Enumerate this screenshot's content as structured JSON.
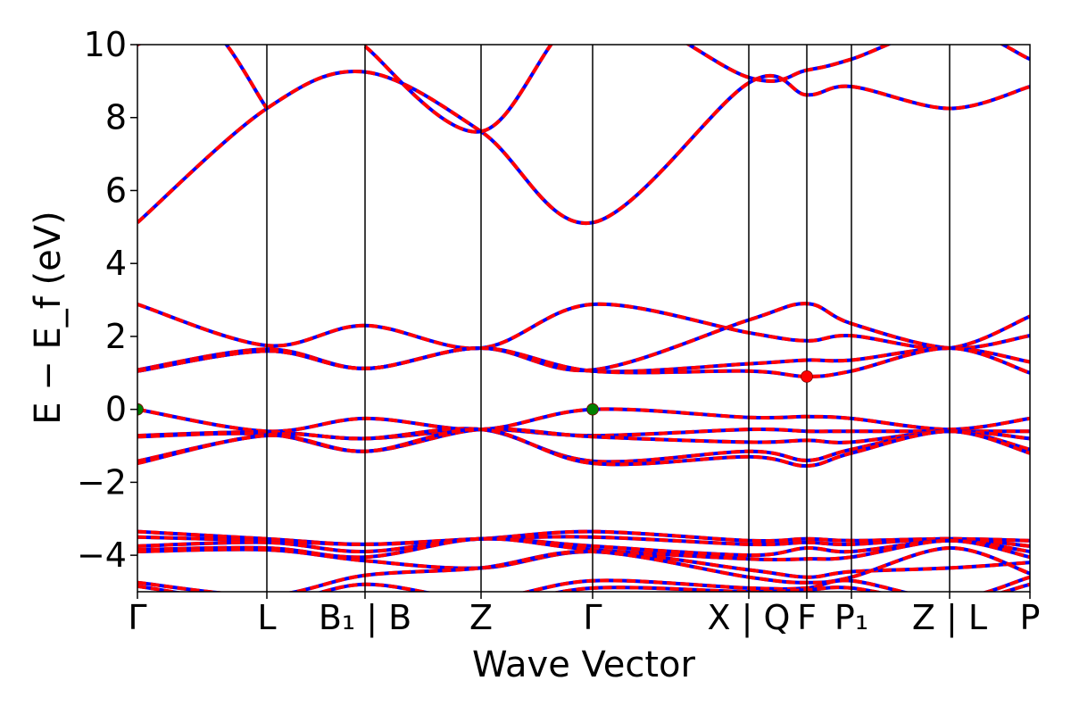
{
  "chart_data": {
    "type": "line",
    "title": "",
    "xlabel": "Wave Vector",
    "ylabel": "E − E_f (eV)",
    "ylim": [
      -5,
      10
    ],
    "y_ticks": [
      -4,
      -2,
      0,
      2,
      4,
      6,
      8,
      10
    ],
    "y_tick_labels": [
      "−4",
      "−2",
      "0",
      "2",
      "4",
      "6",
      "8",
      "10"
    ],
    "grid": false,
    "kpath": [
      {
        "label": "Γ",
        "x": 0.0
      },
      {
        "label": "L",
        "x": 0.29
      },
      {
        "label": "B₁ | B",
        "x": 0.51
      },
      {
        "label": "Z",
        "x": 0.77
      },
      {
        "label": "Γ",
        "x": 1.02
      },
      {
        "label": "X | Q",
        "x": 1.37
      },
      {
        "label": "F",
        "x": 1.5
      },
      {
        "label": "P₁",
        "x": 1.6
      },
      {
        "label": "Z | L",
        "x": 1.82
      },
      {
        "label": "P",
        "x": 2.0
      }
    ],
    "colors": {
      "spin_up": "#ff0000",
      "spin_down": "#0000ff",
      "vbm_marker": "#008000",
      "cbm_marker": "#ff0000"
    },
    "series": [
      {
        "x": [
          0.0,
          0.29,
          0.51,
          0.77,
          1.02,
          1.37,
          1.5,
          1.6,
          1.82,
          2.0
        ],
        "y": [
          5.12,
          8.25,
          9.25,
          7.62,
          5.12,
          8.95,
          8.62,
          8.85,
          8.25,
          8.85
        ]
      },
      {
        "x": [
          0.0,
          0.15,
          0.29
        ],
        "y": [
          10.0,
          10.6,
          8.25
        ]
      },
      {
        "x": [
          0.51,
          0.77,
          1.02,
          1.37,
          1.5,
          1.6,
          1.82,
          2.0
        ],
        "y": [
          9.95,
          7.62,
          11.0,
          9.1,
          9.3,
          9.6,
          10.5,
          9.6
        ]
      },
      {
        "x": [
          0.0,
          0.29,
          0.51,
          0.77,
          1.02,
          1.37,
          1.5,
          1.6,
          1.82,
          2.0
        ],
        "y": [
          2.88,
          1.75,
          2.3,
          1.68,
          2.88,
          2.1,
          1.88,
          2.02,
          1.68,
          2.55
        ]
      },
      {
        "x": [
          0.0,
          0.29,
          0.51,
          0.77,
          1.02,
          1.37,
          1.5,
          1.6,
          1.82,
          2.0
        ],
        "y": [
          1.08,
          1.65,
          1.12,
          1.68,
          1.08,
          2.45,
          2.9,
          2.35,
          1.68,
          2.02
        ]
      },
      {
        "x": [
          0.0,
          0.29,
          0.51,
          0.77,
          1.02,
          1.37,
          1.5,
          1.6,
          1.82,
          2.0
        ],
        "y": [
          1.05,
          1.6,
          1.12,
          1.68,
          1.05,
          1.25,
          1.35,
          1.35,
          1.68,
          1.3
        ]
      },
      {
        "x": [
          0.0,
          0.29,
          0.51,
          0.77,
          1.02,
          1.37,
          1.5,
          1.6,
          1.82,
          2.0
        ],
        "y": [
          1.05,
          1.6,
          1.12,
          1.68,
          1.05,
          1.05,
          0.9,
          1.05,
          1.68,
          1.0
        ]
      },
      {
        "x": [
          0.0,
          0.29,
          0.51,
          0.77,
          1.02,
          1.37,
          1.5,
          1.6,
          1.82,
          2.0
        ],
        "y": [
          0.0,
          -0.6,
          -0.25,
          -0.55,
          0.0,
          -0.22,
          -0.2,
          -0.25,
          -0.55,
          -0.25
        ]
      },
      {
        "x": [
          0.0,
          0.29,
          0.51,
          0.77,
          1.02,
          1.37,
          1.5,
          1.6,
          1.82,
          2.0
        ],
        "y": [
          -0.72,
          -0.62,
          -0.8,
          -0.55,
          -0.72,
          -0.55,
          -0.6,
          -0.6,
          -0.6,
          -0.6
        ]
      },
      {
        "x": [
          0.0,
          0.29,
          0.51,
          0.77,
          1.02,
          1.37,
          1.5,
          1.6,
          1.82,
          2.0
        ],
        "y": [
          -0.75,
          -0.68,
          -1.15,
          -0.55,
          -0.75,
          -0.9,
          -0.85,
          -0.9,
          -0.6,
          -0.8
        ]
      },
      {
        "x": [
          0.0,
          0.29,
          0.51,
          0.77,
          1.02,
          1.37,
          1.5,
          1.6,
          1.82,
          2.0
        ],
        "y": [
          -1.42,
          -0.7,
          -0.8,
          -0.55,
          -1.42,
          -1.15,
          -1.4,
          -1.1,
          -0.6,
          -1.1
        ]
      },
      {
        "x": [
          0.0,
          0.29,
          0.51,
          0.77,
          1.02,
          1.37,
          1.5,
          1.6,
          1.82,
          2.0
        ],
        "y": [
          -1.48,
          -0.72,
          -1.15,
          -0.55,
          -1.48,
          -1.3,
          -1.55,
          -1.2,
          -0.6,
          -1.2
        ]
      },
      {
        "x": [
          0.0,
          0.29,
          0.51,
          0.77,
          1.02,
          1.37,
          1.5,
          1.6,
          1.82,
          2.0
        ],
        "y": [
          -3.35,
          -3.55,
          -3.7,
          -3.55,
          -3.35,
          -3.6,
          -3.55,
          -3.6,
          -3.55,
          -3.6
        ]
      },
      {
        "x": [
          0.0,
          0.29,
          0.51,
          0.77,
          1.02,
          1.37,
          1.5,
          1.6,
          1.82,
          2.0
        ],
        "y": [
          -3.5,
          -3.6,
          -3.7,
          -3.55,
          -3.5,
          -3.7,
          -3.65,
          -3.7,
          -3.55,
          -3.75
        ]
      },
      {
        "x": [
          0.0,
          0.29,
          0.51,
          0.77,
          1.02,
          1.37,
          1.5,
          1.6,
          1.82,
          2.0
        ],
        "y": [
          -3.75,
          -3.65,
          -3.9,
          -3.55,
          -3.75,
          -4.0,
          -3.8,
          -3.9,
          -3.6,
          -3.9
        ]
      },
      {
        "x": [
          0.0,
          0.29,
          0.51,
          0.77,
          1.02,
          1.37,
          1.5,
          1.6,
          1.82,
          2.0
        ],
        "y": [
          -3.85,
          -3.8,
          -4.05,
          -3.55,
          -3.85,
          -4.1,
          -4.1,
          -4.05,
          -3.6,
          -4.05
        ]
      },
      {
        "x": [
          0.0,
          0.29,
          0.51,
          0.77,
          1.02,
          1.37,
          1.5,
          1.6,
          1.82,
          2.0
        ],
        "y": [
          -3.9,
          -3.85,
          -4.15,
          -4.35,
          -3.9,
          -4.4,
          -4.6,
          -4.45,
          -4.35,
          -4.2
        ]
      },
      {
        "x": [
          0.0,
          0.29,
          0.51,
          0.77,
          1.02,
          1.37,
          1.5,
          1.6,
          1.82,
          2.0
        ],
        "y": [
          -4.75,
          -5.1,
          -4.55,
          -4.35,
          -3.9,
          -4.6,
          -4.75,
          -4.6,
          -3.8,
          -4.5
        ]
      },
      {
        "x": [
          0.0,
          0.29,
          0.51,
          0.77,
          1.02,
          1.37,
          1.5,
          1.6,
          1.82,
          2.0
        ],
        "y": [
          -4.85,
          -5.3,
          -4.8,
          -5.2,
          -4.7,
          -4.9,
          -4.9,
          -4.7,
          -5.2,
          -4.6
        ]
      },
      {
        "x": [
          0.0,
          0.29,
          0.51,
          0.77,
          1.02,
          1.37,
          1.5,
          1.6,
          1.82,
          2.0
        ],
        "y": [
          -5.2,
          -5.3,
          -5.05,
          -5.4,
          -4.9,
          -5.0,
          -4.95,
          -4.9,
          -5.3,
          -4.8
        ]
      }
    ],
    "markers": [
      {
        "x": 0.0,
        "y": 0.0,
        "color": "#008000"
      },
      {
        "x": 1.02,
        "y": 0.0,
        "color": "#008000"
      },
      {
        "x": 1.5,
        "y": 0.9,
        "color": "#ff0000"
      }
    ]
  }
}
